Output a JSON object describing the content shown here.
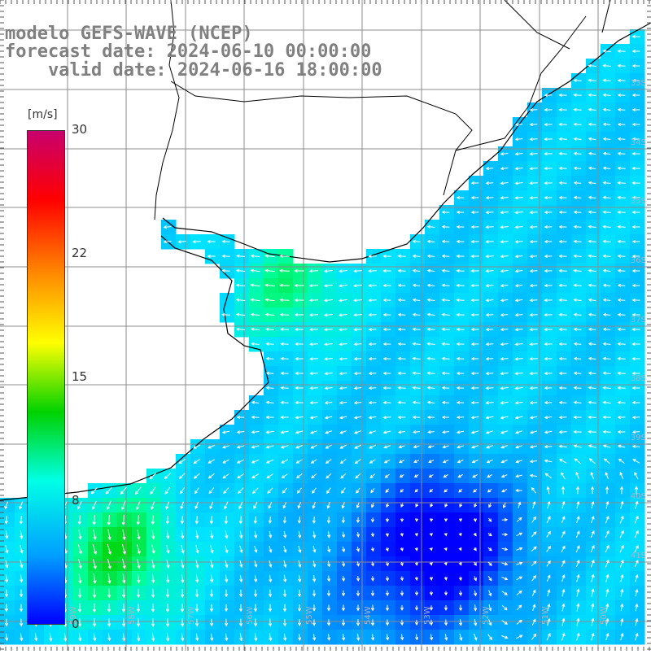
{
  "title": {
    "line1": "modelo GEFS-WAVE (NCEP)",
    "line2": "forecast date: 2024-06-10 00:00:00",
    "line3": "    valid date: 2024-06-16 18:00:00"
  },
  "colorbar": {
    "unit": "[m/s]",
    "min": 0,
    "max": 30,
    "tick_labels": [
      "30",
      "22",
      "15",
      "8",
      "0"
    ],
    "colors": [
      "#c8006e",
      "#ff0000",
      "#ff8a00",
      "#ffff00",
      "#00d200",
      "#00ffe6",
      "#00a0ff",
      "#0000ff"
    ]
  },
  "map": {
    "lat_labels": [
      "33S",
      "34S",
      "35S",
      "36S",
      "37S",
      "38S",
      "39S",
      "40S",
      "41S"
    ],
    "lon_labels": [
      "59W",
      "58W",
      "57W",
      "56W",
      "55W",
      "54W",
      "53W",
      "52W",
      "51W",
      "50W"
    ],
    "field": "wind speed and direction",
    "colors": {
      "land": "#ffffff",
      "grid": "#8c8c8c",
      "coast": "#000000",
      "arrow": "#ffffff"
    }
  }
}
